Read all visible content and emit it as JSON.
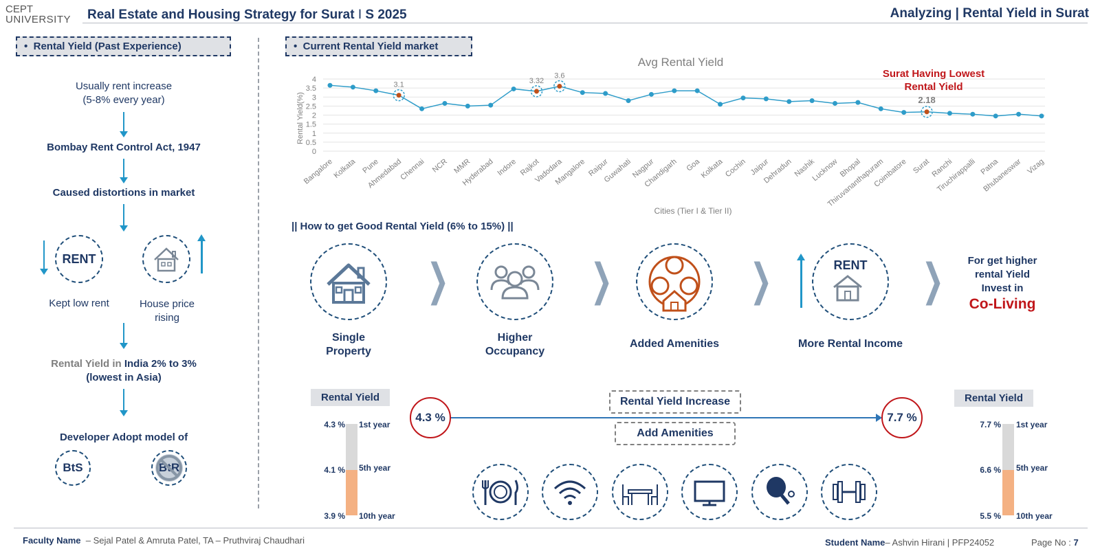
{
  "header": {
    "logo_line1": "CEPT",
    "logo_line2": "UNIVERSITY",
    "title_main": "Real Estate and Housing Strategy for Surat",
    "title_sep": "I",
    "title_term": "S 2025",
    "right_title": "Analyzing | Rental Yield in Surat"
  },
  "left": {
    "section_label": "Rental Yield  (Past Experience)",
    "bullet": "•",
    "step1": "Usually rent increase\n(5-8% every year)",
    "step2": "Bombay Rent Control Act, 1947",
    "step3": "Caused distortions in market",
    "rent_circle": "RENT",
    "kept_low": "Kept low rent",
    "house_price": "House price\nrising",
    "step5_prefix": "Rental Yield in ",
    "step5_rest": "India 2% to 3%",
    "step5_line2": "(lowest in Asia)",
    "step6": "Developer Adopt model of",
    "bts": "BtS",
    "btr": "BtR"
  },
  "right": {
    "section_label": "Current Rental Yield market",
    "how_to": "|| How to get Good Rental Yield (6% to 15%) ||",
    "steps": [
      {
        "label": "Single\nProperty"
      },
      {
        "label": "Higher\nOccupancy"
      },
      {
        "label": "Added Amenities"
      },
      {
        "label": "More Rental Income"
      }
    ],
    "rent_word": "RENT",
    "final_text": "For get higher\nrental Yield\nInvest in",
    "coliving": "Co-Living",
    "rental_yield_increase": "Rental Yield Increase",
    "add_amenities": "Add Amenities",
    "start_pct": "4.3 %",
    "end_pct": "7.7 %",
    "left_ry": {
      "tag": "Rental Yield",
      "vals": [
        "4.3 %",
        "4.1 %",
        "3.9 %"
      ],
      "years": [
        "1st year",
        "5th year",
        "10th year"
      ]
    },
    "right_ry": {
      "tag": "Rental Yield",
      "vals": [
        "7.7 %",
        "6.6 %",
        "5.5 %"
      ],
      "years": [
        "1st year",
        "5th year",
        "10th year"
      ]
    },
    "amenity_icons": [
      "dining-icon",
      "wifi-icon",
      "furniture-icon",
      "tv-icon",
      "table-tennis-icon",
      "gym-icon"
    ]
  },
  "chart_data": {
    "type": "line",
    "title": "Avg Rental Yield",
    "xlabel": "Cities (Tier I & Tier II)",
    "ylabel": "Rental Yield(%)",
    "ylim": [
      0,
      4
    ],
    "yticks": [
      "0",
      "0.5",
      "1",
      "1.5",
      "2",
      "2.5",
      "3",
      "3.5",
      "4"
    ],
    "categories": [
      "Bangalore",
      "Kolkata",
      "Pune",
      "Ahmedabad",
      "Chennai",
      "NCR",
      "MMR",
      "Hyderabad",
      "Indore",
      "Rajkot",
      "Vadodara",
      "Mangalore",
      "Raipur",
      "Guwahati",
      "Nagpur",
      "Chandigarh",
      "Goa",
      "Kolkata",
      "Cochin",
      "Jaipur",
      "Dehradun",
      "Nashik",
      "Lucknow",
      "Bhopal",
      "Thiruvananthapuram",
      "Coimbatore",
      "Surat",
      "Ranchi",
      "Tiruchirappalli",
      "Patna",
      "Bhubaneswar",
      "Vizag"
    ],
    "values": [
      3.65,
      3.55,
      3.35,
      3.1,
      2.35,
      2.65,
      2.5,
      2.55,
      3.45,
      3.32,
      3.6,
      3.25,
      3.2,
      2.8,
      3.15,
      3.35,
      3.35,
      2.6,
      2.95,
      2.9,
      2.75,
      2.8,
      2.65,
      2.7,
      2.35,
      2.15,
      2.18,
      2.1,
      2.05,
      1.95,
      2.05,
      1.95
    ],
    "highlighted": [
      {
        "index": 3,
        "label": "3.1"
      },
      {
        "index": 9,
        "label": "3.32"
      },
      {
        "index": 10,
        "label": "3.6"
      },
      {
        "index": 26,
        "label": "2.18"
      }
    ],
    "annotation": "Surat Having Lowest\nRental Yield",
    "grid": true,
    "line_color": "#2e9cc9",
    "highlight_color": "#c0501a",
    "annotation_color": "#c0161a"
  },
  "footer": {
    "faculty_label": "Faculty Name",
    "faculty_names": "–  Sejal Patel & Amruta Patel, TA – Pruthviraj Chaudhari",
    "student_label": "Student Name",
    "student_name": "– Ashvin Hirani | PFP24052",
    "page_label": "Page No : ",
    "page_num": "7"
  }
}
